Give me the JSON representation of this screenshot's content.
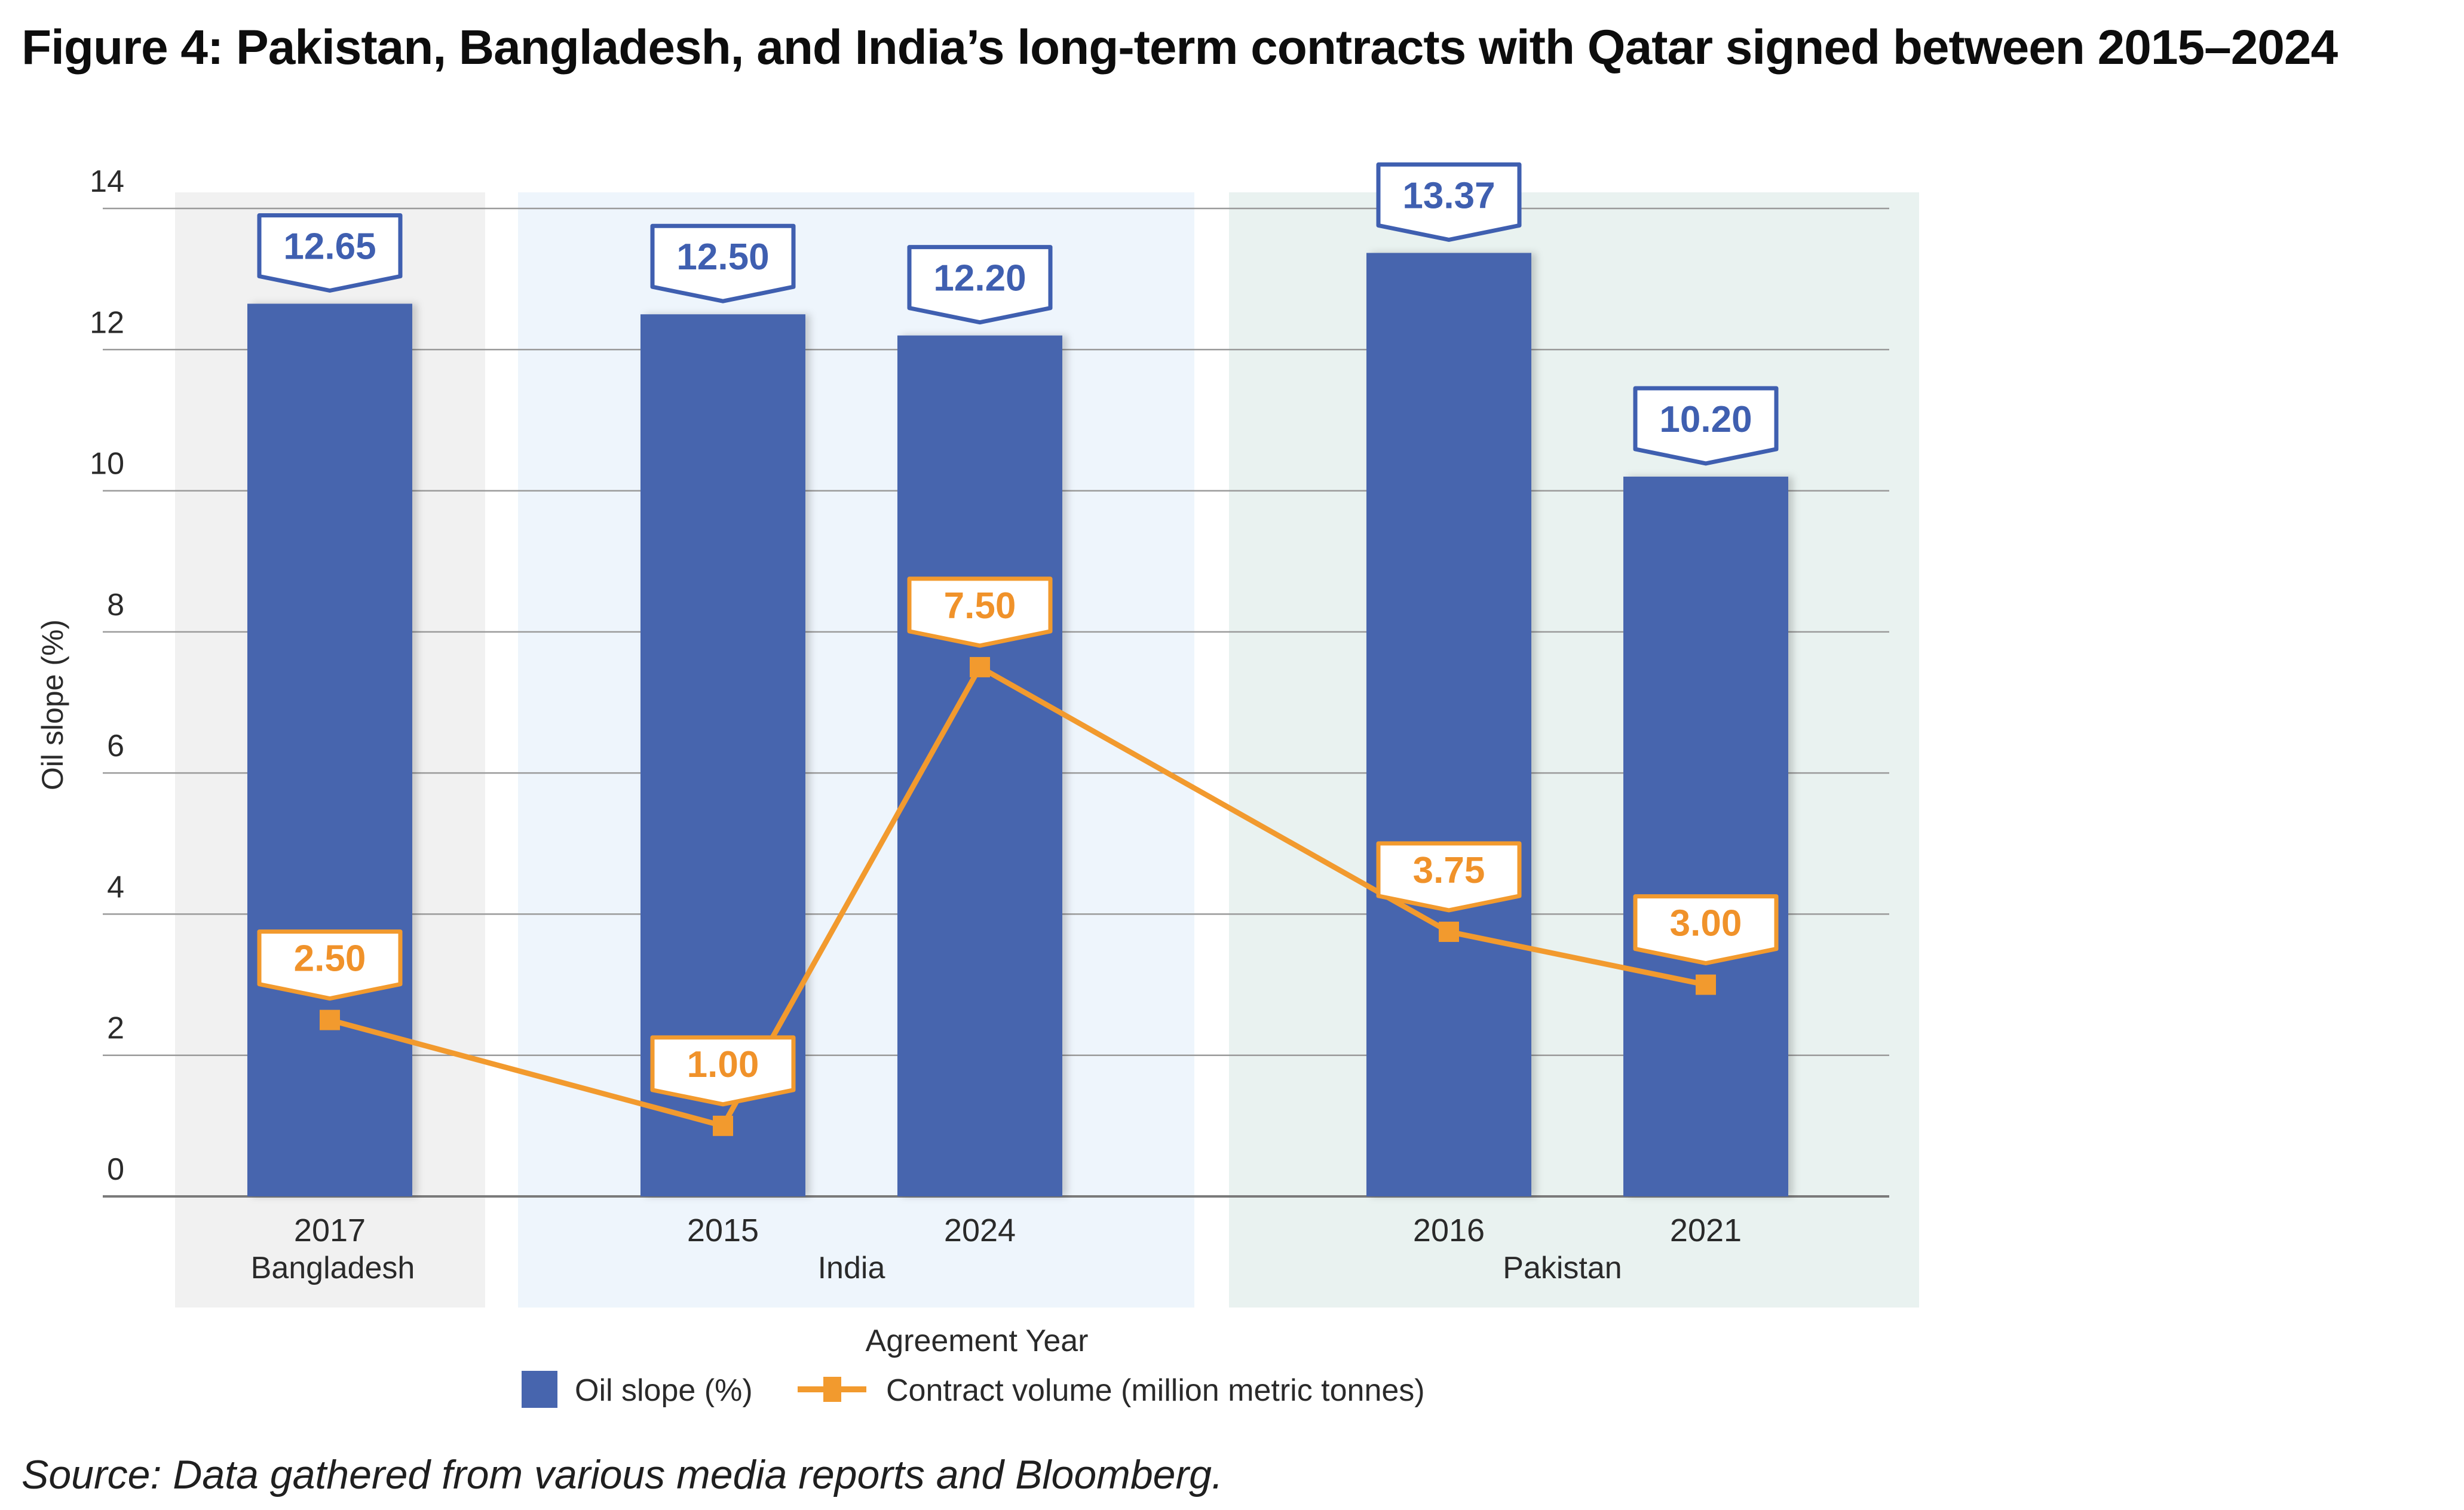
{
  "title": "Figure 4: Pakistan, Bangladesh, and India’s long-term contracts with Qatar signed between 2015–2024",
  "source": "Source: Data gathered from various media reports and Bloomberg.",
  "colors": {
    "bar": "#4765AE",
    "line": "#F29A2E",
    "bar_label": "#3F5FB0",
    "line_label": "#F0922A",
    "band_bangladesh": "#F1F1F1",
    "band_india": "#EEF5FC",
    "band_pakistan": "#E9F2F0",
    "grid": "#9A9A9A"
  },
  "chart_data": {
    "type": "bar+line",
    "title": "Figure 4: Pakistan, Bangladesh, and India’s long-term contracts with Qatar signed between 2015–2024",
    "xlabel": "Agreement Year",
    "ylabel": "Oil slope (%)",
    "ylim": [
      0,
      14
    ],
    "yticks": [
      0,
      2,
      4,
      6,
      8,
      10,
      12,
      14
    ],
    "grid": true,
    "legend_position": "bottom",
    "groups": [
      {
        "name": "Bangladesh",
        "categories": [
          "2017"
        ]
      },
      {
        "name": "India",
        "categories": [
          "2015",
          "2024"
        ]
      },
      {
        "name": "Pakistan",
        "categories": [
          "2016",
          "2021"
        ]
      }
    ],
    "categories": [
      "2017",
      "2015",
      "2024",
      "2016",
      "2021"
    ],
    "series": [
      {
        "name": "Oil slope (%)",
        "type": "bar",
        "values": [
          12.65,
          12.5,
          12.2,
          13.37,
          10.2
        ],
        "labels": [
          "12.65",
          "12.50",
          "12.20",
          "13.37",
          "10.20"
        ]
      },
      {
        "name": "Contract volume (million metric tonnes)",
        "type": "line",
        "values": [
          2.5,
          1.0,
          7.5,
          3.75,
          3.0
        ],
        "labels": [
          "2.50",
          "1.00",
          "7.50",
          "3.75",
          "3.00"
        ]
      }
    ]
  }
}
